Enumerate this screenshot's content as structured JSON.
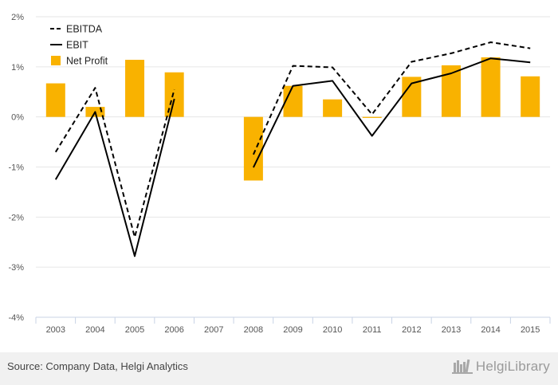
{
  "chart_data": {
    "type": "bar+line",
    "categories": [
      "2003",
      "2004",
      "2005",
      "2006",
      "2007",
      "2008",
      "2009",
      "2010",
      "2011",
      "2012",
      "2013",
      "2014",
      "2015"
    ],
    "series": [
      {
        "name": "EBITDA",
        "kind": "line",
        "style": "dashed",
        "color": "#000000",
        "values": [
          -0.7,
          0.58,
          -2.4,
          0.55,
          null,
          -0.75,
          1.02,
          0.99,
          0.05,
          1.1,
          1.27,
          1.49,
          1.37
        ]
      },
      {
        "name": "EBIT",
        "kind": "line",
        "style": "solid",
        "color": "#000000",
        "values": [
          -1.25,
          0.1,
          -2.78,
          0.36,
          null,
          -1.01,
          0.62,
          0.72,
          -0.38,
          0.67,
          0.87,
          1.17,
          1.09
        ]
      },
      {
        "name": "Net Profit",
        "kind": "bar",
        "color": "#f9b200",
        "values": [
          0.67,
          0.2,
          1.14,
          0.89,
          null,
          -1.27,
          0.62,
          0.35,
          -0.02,
          0.8,
          1.03,
          1.19,
          0.81
        ]
      }
    ],
    "yticks": [
      2,
      1,
      0,
      -1,
      -2,
      -3,
      -4
    ],
    "ytick_labels": [
      "2%",
      "1%",
      "0%",
      "-1%",
      "-2%",
      "-3%",
      "-4%"
    ],
    "ylim": [
      -4,
      2
    ],
    "grid": true,
    "legend_position": "top-left",
    "title": "",
    "xlabel": "",
    "ylabel": ""
  },
  "footer": {
    "source": "Source: Company Data, Helgi Analytics",
    "brand": "HelgiLibrary"
  },
  "icons": {
    "brand_logo": "library-books-icon"
  }
}
